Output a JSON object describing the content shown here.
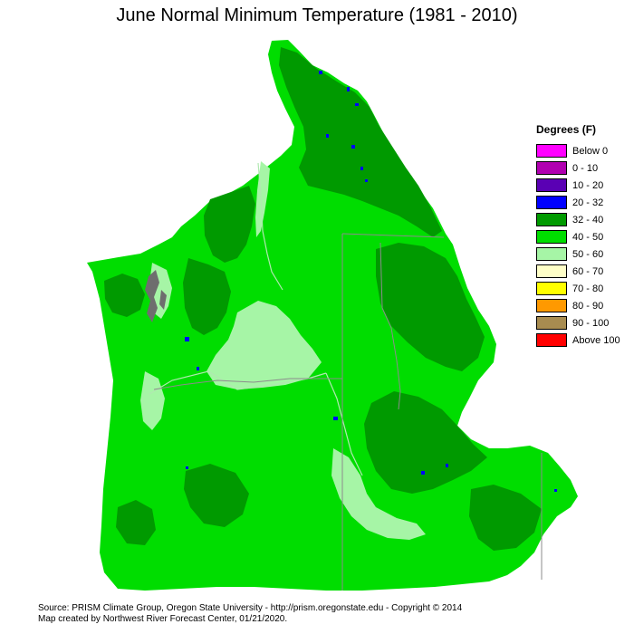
{
  "title": "June Normal Minimum Temperature (1981 - 2010)",
  "legend": {
    "title": "Degrees (F)",
    "items": [
      {
        "label": "Below 0",
        "color": "#ff00ff"
      },
      {
        "label": "0 - 10",
        "color": "#b000b0"
      },
      {
        "label": "10 - 20",
        "color": "#5a00b4"
      },
      {
        "label": "20 - 32",
        "color": "#0000ff"
      },
      {
        "label": "32 - 40",
        "color": "#009a00"
      },
      {
        "label": "40 - 50",
        "color": "#00dd00"
      },
      {
        "label": "50 - 60",
        "color": "#a6f5a6"
      },
      {
        "label": "60 - 70",
        "color": "#ffffc8"
      },
      {
        "label": "70 - 80",
        "color": "#ffff00"
      },
      {
        "label": "80 - 90",
        "color": "#ff9900"
      },
      {
        "label": "90 - 100",
        "color": "#a88c50"
      },
      {
        "label": "Above 100",
        "color": "#ff0000"
      }
    ]
  },
  "credits": {
    "line1": "Source: PRISM Climate Group, Oregon State University - http://prism.oregonstate.edu - Copyright © 2014",
    "line2": "Map created by Northwest River Forecast Center, 01/21/2020."
  }
}
